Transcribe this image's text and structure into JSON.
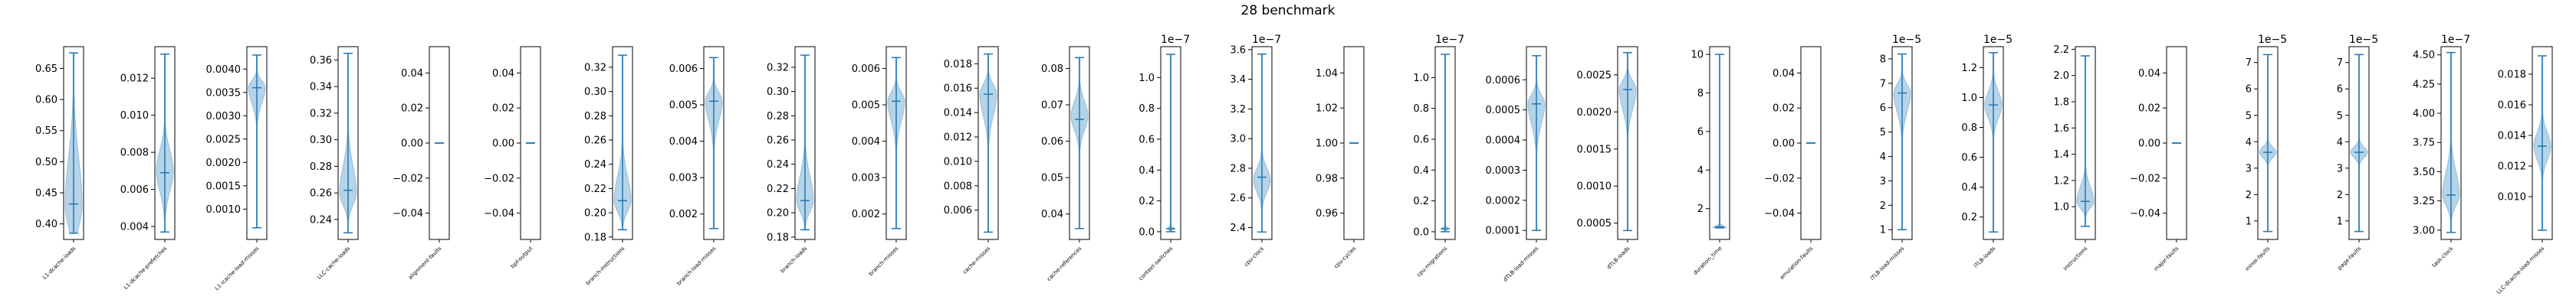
{
  "figure": {
    "title": "28 benchmark"
  },
  "colors": {
    "body": "#a9cde4",
    "edge": "#1f77b4",
    "bar": "#1f77b4"
  },
  "chart_data": {
    "type": "violin",
    "grid": false,
    "panels": [
      {
        "category": "L1-dcache-loads",
        "exponent": "",
        "ylim": [
          0.375,
          0.685
        ],
        "ticks": [
          "0.40",
          "0.45",
          "0.50",
          "0.55",
          "0.60",
          "0.65"
        ],
        "tick_values": [
          0.4,
          0.45,
          0.5,
          0.55,
          0.6,
          0.65
        ],
        "min": 0.385,
        "max": 0.675,
        "median": 0.432,
        "mode": 0.43,
        "spread": 0.035,
        "shape": "skew-low"
      },
      {
        "category": "L1-dcache-prefetches",
        "exponent": "",
        "ylim": [
          0.0033,
          0.0137
        ],
        "ticks": [
          "0.004",
          "0.006",
          "0.008",
          "0.010",
          "0.012"
        ],
        "tick_values": [
          0.004,
          0.006,
          0.008,
          0.01,
          0.012
        ],
        "min": 0.0037,
        "max": 0.0133,
        "median": 0.0069,
        "mode": 0.007,
        "spread": 0.0011,
        "shape": "normal"
      },
      {
        "category": "L1-icache-load-misses",
        "exponent": "",
        "ylim": [
          0.00035,
          0.00448
        ],
        "ticks": [
          "0.0010",
          "0.0015",
          "0.0020",
          "0.0025",
          "0.0030",
          "0.0035",
          "0.0040"
        ],
        "tick_values": [
          0.001,
          0.0015,
          0.002,
          0.0025,
          0.003,
          0.0035,
          0.004
        ],
        "min": 0.0006,
        "max": 0.0043,
        "median": 0.0036,
        "mode": 0.0036,
        "spread": 0.00015,
        "shape": "skew-high"
      },
      {
        "category": "LLC-cache-loads",
        "exponent": "",
        "ylim": [
          0.225,
          0.37
        ],
        "ticks": [
          "0.24",
          "0.26",
          "0.28",
          "0.30",
          "0.32",
          "0.34",
          "0.36"
        ],
        "tick_values": [
          0.24,
          0.26,
          0.28,
          0.3,
          0.32,
          0.34,
          0.36
        ],
        "min": 0.23,
        "max": 0.365,
        "median": 0.262,
        "mode": 0.26,
        "spread": 0.009,
        "shape": "skew-low"
      },
      {
        "category": "alignment-faults",
        "exponent": "",
        "ylim": [
          -0.055,
          0.055
        ],
        "ticks": [
          "−0.04",
          "−0.02",
          "0.00",
          "0.02",
          "0.04"
        ],
        "tick_values": [
          -0.04,
          -0.02,
          0.0,
          0.02,
          0.04
        ],
        "min": 0,
        "max": 0,
        "median": 0,
        "mode": 0,
        "spread": 0,
        "shape": "flat"
      },
      {
        "category": "bpf-output",
        "exponent": "",
        "ylim": [
          -0.055,
          0.055
        ],
        "ticks": [
          "−0.04",
          "−0.02",
          "0.00",
          "0.02",
          "0.04"
        ],
        "tick_values": [
          -0.04,
          -0.02,
          0.0,
          0.02,
          0.04
        ],
        "min": 0,
        "max": 0,
        "median": 0,
        "mode": 0,
        "spread": 0,
        "shape": "flat"
      },
      {
        "category": "branch-instructions",
        "exponent": "",
        "ylim": [
          0.178,
          0.337
        ],
        "ticks": [
          "0.18",
          "0.20",
          "0.22",
          "0.24",
          "0.26",
          "0.28",
          "0.30",
          "0.32"
        ],
        "tick_values": [
          0.18,
          0.2,
          0.22,
          0.24,
          0.26,
          0.28,
          0.3,
          0.32
        ],
        "min": 0.186,
        "max": 0.33,
        "median": 0.21,
        "mode": 0.21,
        "spread": 0.009,
        "shape": "skew-low"
      },
      {
        "category": "branch-load-misses",
        "exponent": "",
        "ylim": [
          0.0013,
          0.0066
        ],
        "ticks": [
          "0.002",
          "0.003",
          "0.004",
          "0.005",
          "0.006"
        ],
        "tick_values": [
          0.002,
          0.003,
          0.004,
          0.005,
          0.006
        ],
        "min": 0.0016,
        "max": 0.0063,
        "median": 0.0051,
        "mode": 0.0051,
        "spread": 0.00025,
        "shape": "skew-high"
      },
      {
        "category": "branch-loads",
        "exponent": "",
        "ylim": [
          0.178,
          0.337
        ],
        "ticks": [
          "0.18",
          "0.20",
          "0.22",
          "0.24",
          "0.26",
          "0.28",
          "0.30",
          "0.32"
        ],
        "tick_values": [
          0.18,
          0.2,
          0.22,
          0.24,
          0.26,
          0.28,
          0.3,
          0.32
        ],
        "min": 0.186,
        "max": 0.33,
        "median": 0.21,
        "mode": 0.21,
        "spread": 0.009,
        "shape": "skew-low"
      },
      {
        "category": "branch-misses",
        "exponent": "",
        "ylim": [
          0.0013,
          0.0066
        ],
        "ticks": [
          "0.002",
          "0.003",
          "0.004",
          "0.005",
          "0.006"
        ],
        "tick_values": [
          0.002,
          0.003,
          0.004,
          0.005,
          0.006
        ],
        "min": 0.0016,
        "max": 0.0063,
        "median": 0.0051,
        "mode": 0.0051,
        "spread": 0.00025,
        "shape": "skew-high"
      },
      {
        "category": "cache-misses",
        "exponent": "",
        "ylim": [
          0.0036,
          0.0194
        ],
        "ticks": [
          "0.006",
          "0.008",
          "0.010",
          "0.012",
          "0.014",
          "0.016",
          "0.018"
        ],
        "tick_values": [
          0.006,
          0.008,
          0.01,
          0.012,
          0.014,
          0.016,
          0.018
        ],
        "min": 0.0042,
        "max": 0.0188,
        "median": 0.0155,
        "mode": 0.0155,
        "spread": 0.0008,
        "shape": "skew-high"
      },
      {
        "category": "cache-references",
        "exponent": "",
        "ylim": [
          0.033,
          0.086
        ],
        "ticks": [
          "0.04",
          "0.05",
          "0.06",
          "0.07",
          "0.08"
        ],
        "tick_values": [
          0.04,
          0.05,
          0.06,
          0.07,
          0.08
        ],
        "min": 0.036,
        "max": 0.083,
        "median": 0.066,
        "mode": 0.067,
        "spread": 0.004,
        "shape": "normal"
      },
      {
        "category": "context-switches",
        "exponent": "1e−7",
        "ylim": [
          -0.05,
          1.2
        ],
        "ticks": [
          "0.0",
          "0.2",
          "0.4",
          "0.6",
          "0.8",
          "1.0"
        ],
        "tick_values": [
          0.0,
          0.2,
          0.4,
          0.6,
          0.8,
          1.0
        ],
        "min": 0.0,
        "max": 1.15,
        "median": 0.02,
        "mode": 0.02,
        "spread": 0.01,
        "shape": "spike"
      },
      {
        "category": "cpu-clock",
        "exponent": "1e−7",
        "ylim": [
          2.32,
          3.62
        ],
        "ticks": [
          "2.4",
          "2.6",
          "2.8",
          "3.0",
          "3.2",
          "3.4",
          "3.6"
        ],
        "tick_values": [
          2.4,
          2.6,
          2.8,
          3.0,
          3.2,
          3.4,
          3.6
        ],
        "min": 2.37,
        "max": 3.57,
        "median": 2.74,
        "mode": 2.72,
        "spread": 0.08,
        "shape": "normal"
      },
      {
        "category": "cpu-cycles",
        "exponent": "",
        "ylim": [
          0.945,
          1.055
        ],
        "ticks": [
          "0.96",
          "0.98",
          "1.00",
          "1.02",
          "1.04"
        ],
        "tick_values": [
          0.96,
          0.98,
          1.0,
          1.02,
          1.04
        ],
        "min": 1,
        "max": 1,
        "median": 1,
        "mode": 1,
        "spread": 0,
        "shape": "flat"
      },
      {
        "category": "cpu-migrations",
        "exponent": "1e−7",
        "ylim": [
          -0.05,
          1.2
        ],
        "ticks": [
          "0.0",
          "0.2",
          "0.4",
          "0.6",
          "0.8",
          "1.0"
        ],
        "tick_values": [
          0.0,
          0.2,
          0.4,
          0.6,
          0.8,
          1.0
        ],
        "min": 0.0,
        "max": 1.15,
        "median": 0.02,
        "mode": 0.02,
        "spread": 0.01,
        "shape": "spike"
      },
      {
        "category": "dTLB-load-misses",
        "exponent": "",
        "ylim": [
          7e-05,
          0.00071
        ],
        "ticks": [
          "0.0001",
          "0.0002",
          "0.0003",
          "0.0004",
          "0.0005",
          "0.0006"
        ],
        "tick_values": [
          0.0001,
          0.0002,
          0.0003,
          0.0004,
          0.0005,
          0.0006
        ],
        "min": 0.0001,
        "max": 0.00068,
        "median": 0.00052,
        "mode": 0.00052,
        "spread": 3e-05,
        "shape": "skew-high"
      },
      {
        "category": "dTLB-loads",
        "exponent": "",
        "ylim": [
          0.00028,
          0.00288
        ],
        "ticks": [
          "0.0005",
          "0.0010",
          "0.0015",
          "0.0020",
          "0.0025"
        ],
        "tick_values": [
          0.0005,
          0.001,
          0.0015,
          0.002,
          0.0025
        ],
        "min": 0.0004,
        "max": 0.0028,
        "median": 0.0023,
        "mode": 0.0023,
        "spread": 0.00012,
        "shape": "skew-high"
      },
      {
        "category": "duration_time",
        "exponent": "",
        "ylim": [
          0.4,
          10.4
        ],
        "ticks": [
          "2",
          "4",
          "6",
          "8",
          "10"
        ],
        "tick_values": [
          2,
          4,
          6,
          8,
          10
        ],
        "min": 1.0,
        "max": 10.0,
        "median": 1.05,
        "mode": 1.0,
        "spread": 0.1,
        "shape": "spike-wide"
      },
      {
        "category": "emulation-faults",
        "exponent": "",
        "ylim": [
          -0.055,
          0.055
        ],
        "ticks": [
          "−0.04",
          "−0.02",
          "0.00",
          "0.02",
          "0.04"
        ],
        "tick_values": [
          -0.04,
          -0.02,
          0.0,
          0.02,
          0.04
        ],
        "min": 0,
        "max": 0,
        "median": 0,
        "mode": 0,
        "spread": 0,
        "shape": "flat"
      },
      {
        "category": "iTLB-load-misses",
        "exponent": "1e−5",
        "ylim": [
          0.6,
          8.5
        ],
        "ticks": [
          "1",
          "2",
          "3",
          "4",
          "5",
          "6",
          "7",
          "8"
        ],
        "tick_values": [
          1,
          2,
          3,
          4,
          5,
          6,
          7,
          8
        ],
        "min": 1.0,
        "max": 8.2,
        "median": 6.6,
        "mode": 6.6,
        "spread": 0.35,
        "shape": "skew-high"
      },
      {
        "category": "iTLB-loads",
        "exponent": "1e−5",
        "ylim": [
          0.05,
          1.34
        ],
        "ticks": [
          "0.2",
          "0.4",
          "0.6",
          "0.8",
          "1.0",
          "1.2"
        ],
        "tick_values": [
          0.2,
          0.4,
          0.6,
          0.8,
          1.0,
          1.2
        ],
        "min": 0.1,
        "max": 1.3,
        "median": 0.95,
        "mode": 0.95,
        "spread": 0.09,
        "shape": "normal"
      },
      {
        "category": "instructions",
        "exponent": "",
        "ylim": [
          0.75,
          2.22
        ],
        "ticks": [
          "1.0",
          "1.2",
          "1.4",
          "1.6",
          "1.8",
          "2.0",
          "2.2"
        ],
        "tick_values": [
          1.0,
          1.2,
          1.4,
          1.6,
          1.8,
          2.0,
          2.2
        ],
        "min": 0.85,
        "max": 2.15,
        "median": 1.04,
        "mode": 1.04,
        "spread": 0.05,
        "shape": "skew-low"
      },
      {
        "category": "major-faults",
        "exponent": "",
        "ylim": [
          -0.055,
          0.055
        ],
        "ticks": [
          "−0.04",
          "−0.02",
          "0.00",
          "0.02",
          "0.04"
        ],
        "tick_values": [
          -0.04,
          -0.02,
          0.0,
          0.02,
          0.04
        ],
        "min": 0,
        "max": 0,
        "median": 0,
        "mode": 0,
        "spread": 0,
        "shape": "flat"
      },
      {
        "category": "minor-faults",
        "exponent": "1e−5",
        "ylim": [
          0.3,
          7.6
        ],
        "ticks": [
          "1",
          "2",
          "3",
          "4",
          "5",
          "6",
          "7"
        ],
        "tick_values": [
          1,
          2,
          3,
          4,
          5,
          6,
          7
        ],
        "min": 0.6,
        "max": 7.3,
        "median": 3.6,
        "mode": 3.6,
        "spread": 0.2,
        "shape": "normal"
      },
      {
        "category": "page-faults",
        "exponent": "1e−5",
        "ylim": [
          0.3,
          7.6
        ],
        "ticks": [
          "1",
          "2",
          "3",
          "4",
          "5",
          "6",
          "7"
        ],
        "tick_values": [
          1,
          2,
          3,
          4,
          5,
          6,
          7
        ],
        "min": 0.6,
        "max": 7.3,
        "median": 3.6,
        "mode": 3.6,
        "spread": 0.2,
        "shape": "normal"
      },
      {
        "category": "task-clock",
        "exponent": "1e−7",
        "ylim": [
          2.92,
          4.57
        ],
        "ticks": [
          "3.00",
          "3.25",
          "3.50",
          "3.75",
          "4.00",
          "4.25",
          "4.50"
        ],
        "tick_values": [
          3.0,
          3.25,
          3.5,
          3.75,
          4.0,
          4.25,
          4.5
        ],
        "min": 2.98,
        "max": 4.52,
        "median": 3.3,
        "mode": 3.3,
        "spread": 0.09,
        "shape": "skew-low"
      },
      {
        "category": "LLC-dcache-load-misses",
        "exponent": "",
        "ylim": [
          0.0072,
          0.0198
        ],
        "ticks": [
          "0.010",
          "0.012",
          "0.014",
          "0.016",
          "0.018"
        ],
        "tick_values": [
          0.01,
          0.012,
          0.014,
          0.016,
          0.018
        ],
        "min": 0.0078,
        "max": 0.0192,
        "median": 0.0133,
        "mode": 0.0133,
        "spread": 0.0009,
        "shape": "normal"
      }
    ]
  }
}
